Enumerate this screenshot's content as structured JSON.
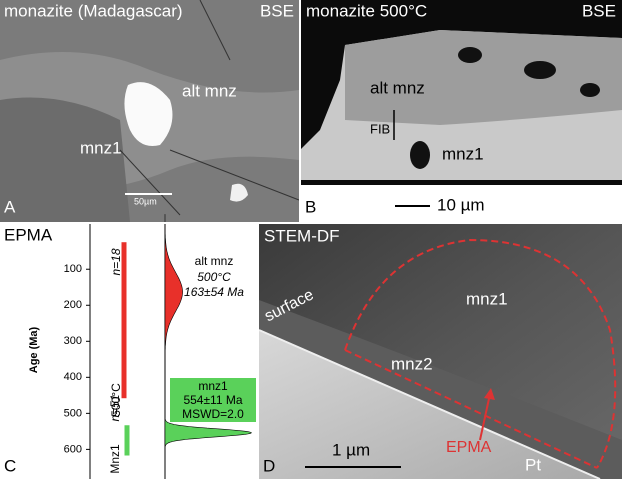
{
  "panels": {
    "a": {
      "letter": "A",
      "title": "monazite (Madagascar)",
      "mode": "BSE",
      "labels": [
        "alt mnz",
        "mnz1"
      ],
      "scale": "50µm"
    },
    "b": {
      "letter": "B",
      "title": "monazite 500°C",
      "mode": "BSE",
      "labels": [
        "alt mnz",
        "FIB",
        "mnz1"
      ],
      "scale": "10 µm"
    },
    "d": {
      "letter": "D",
      "title": "STEM-DF",
      "labels": [
        "surface",
        "mnz1",
        "mnz2",
        "EPMA",
        "Pt"
      ],
      "scale": "1 µm"
    }
  },
  "chart_data": {
    "type": "range",
    "letter": "C",
    "title": "EPMA",
    "y_label": "Age (Ma)",
    "ylim": [
      -20,
      660
    ],
    "yticks": [
      100,
      200,
      300,
      400,
      500,
      600
    ],
    "series": [
      {
        "name": "alt mnz",
        "color": "#e8302a",
        "range": [
          25,
          458
        ],
        "n_label": "n=18",
        "side_label": "500°C",
        "peak": 163,
        "sigma": 54,
        "annotation": [
          "500°C",
          "163±54 Ma"
        ]
      },
      {
        "name": "mnz1",
        "color": "#5ad15a",
        "range": [
          533,
          617
        ],
        "n_label": "n=51",
        "side_label": "Mnz1",
        "peak": 554,
        "sigma": 11,
        "annotation": [
          "554±11 Ma",
          "MSWD=2.0"
        ]
      }
    ]
  }
}
